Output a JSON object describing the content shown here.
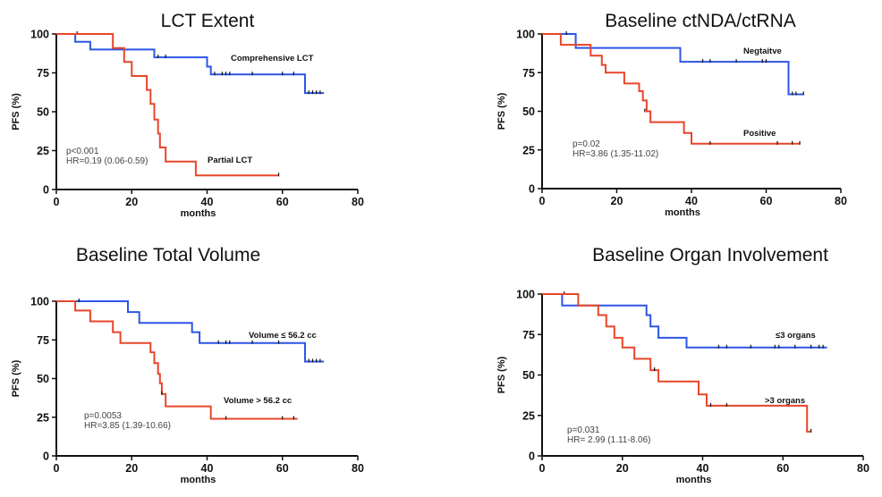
{
  "chart_data": [
    {
      "type": "line",
      "title": "LCT Extent",
      "xlabel": "months",
      "ylabel": "PFS (%)",
      "xlim": [
        0,
        80
      ],
      "ylim": [
        0,
        100
      ],
      "xticks": [
        "0",
        "20",
        "40",
        "60",
        "80"
      ],
      "yticks": [
        "0",
        "25",
        "50",
        "75",
        "100"
      ],
      "stat_lines": [
        "p<0.001",
        "HR=0.19 (0.06-0.59)"
      ],
      "series": [
        {
          "name": "Comprehensive LCT",
          "color": "#2c55e6",
          "steps": [
            [
              0,
              100
            ],
            [
              5,
              100
            ],
            [
              5,
              95
            ],
            [
              9,
              95
            ],
            [
              9,
              90
            ],
            [
              26,
              90
            ],
            [
              26,
              85
            ],
            [
              40,
              85
            ],
            [
              40,
              79
            ],
            [
              41,
              79
            ],
            [
              41,
              74
            ],
            [
              66,
              74
            ],
            [
              66,
              62
            ],
            [
              71,
              62
            ]
          ],
          "censor": [
            [
              5.5,
              100
            ],
            [
              27,
              85
            ],
            [
              29,
              85
            ],
            [
              42,
              74
            ],
            [
              44,
              74
            ],
            [
              45,
              74
            ],
            [
              46,
              74
            ],
            [
              52,
              74
            ],
            [
              60,
              74
            ],
            [
              63,
              74
            ],
            [
              67,
              62
            ],
            [
              68,
              62
            ],
            [
              69,
              62
            ],
            [
              70,
              62
            ]
          ]
        },
        {
          "name": "Partial LCT",
          "color": "#e8462a",
          "steps": [
            [
              0,
              100
            ],
            [
              15,
              100
            ],
            [
              15,
              91
            ],
            [
              18,
              91
            ],
            [
              18,
              82
            ],
            [
              20,
              82
            ],
            [
              20,
              73
            ],
            [
              24,
              73
            ],
            [
              24,
              64
            ],
            [
              25,
              64
            ],
            [
              25,
              55
            ],
            [
              26,
              55
            ],
            [
              26,
              45
            ],
            [
              27,
              45
            ],
            [
              27,
              36
            ],
            [
              27.5,
              36
            ],
            [
              27.5,
              27
            ],
            [
              29,
              27
            ],
            [
              29,
              18
            ],
            [
              37,
              18
            ],
            [
              37,
              9
            ],
            [
              59,
              9
            ]
          ],
          "censor": [
            [
              59,
              9
            ]
          ]
        }
      ]
    },
    {
      "type": "line",
      "title": "Baseline ctNDA/ctRNA",
      "xlabel": "months",
      "ylabel": "PFS (%)",
      "xlim": [
        0,
        80
      ],
      "ylim": [
        0,
        100
      ],
      "xticks": [
        "0",
        "20",
        "40",
        "60",
        "80"
      ],
      "yticks": [
        "0",
        "25",
        "50",
        "75",
        "100"
      ],
      "stat_lines": [
        "p=0.02",
        "HR=3.86 (1.35-11.02)"
      ],
      "series": [
        {
          "name": "Negtaitve",
          "color": "#2c55e6",
          "steps": [
            [
              0,
              100
            ],
            [
              9,
              100
            ],
            [
              9,
              91
            ],
            [
              37,
              91
            ],
            [
              37,
              82
            ],
            [
              66,
              82
            ],
            [
              66,
              61
            ],
            [
              70,
              61
            ]
          ],
          "censor": [
            [
              6.5,
              100
            ],
            [
              43,
              82
            ],
            [
              45,
              82
            ],
            [
              52,
              82
            ],
            [
              59,
              82
            ],
            [
              60,
              82
            ],
            [
              67,
              61
            ],
            [
              68,
              61
            ],
            [
              70,
              61
            ]
          ]
        },
        {
          "name": "Positive",
          "color": "#e8462a",
          "steps": [
            [
              0,
              100
            ],
            [
              5,
              100
            ],
            [
              5,
              93
            ],
            [
              13,
              93
            ],
            [
              13,
              86
            ],
            [
              16,
              86
            ],
            [
              16,
              80
            ],
            [
              17,
              80
            ],
            [
              17,
              75
            ],
            [
              22,
              75
            ],
            [
              22,
              68
            ],
            [
              26,
              68
            ],
            [
              26,
              63
            ],
            [
              27,
              63
            ],
            [
              27,
              57
            ],
            [
              28,
              57
            ],
            [
              28,
              50
            ],
            [
              29,
              50
            ],
            [
              29,
              43
            ],
            [
              38,
              43
            ],
            [
              38,
              36
            ],
            [
              40,
              36
            ],
            [
              40,
              29
            ],
            [
              69,
              29
            ]
          ],
          "censor": [
            [
              27.5,
              50
            ],
            [
              45,
              29
            ],
            [
              63,
              29
            ],
            [
              67,
              29
            ],
            [
              69,
              29
            ]
          ]
        }
      ]
    },
    {
      "type": "line",
      "title": "Baseline Total Volume",
      "xlabel": "months",
      "ylabel": "PFS (%)",
      "xlim": [
        0,
        80
      ],
      "ylim": [
        0,
        100
      ],
      "xticks": [
        "0",
        "20",
        "40",
        "60",
        "80"
      ],
      "yticks": [
        "0",
        "25",
        "50",
        "75",
        "100"
      ],
      "stat_lines": [
        "p=0.0053",
        "HR=3.85 (1.39-10.66)"
      ],
      "series": [
        {
          "name": "Volume ≤ 56.2 cc",
          "color": "#2c55e6",
          "steps": [
            [
              0,
              100
            ],
            [
              19,
              100
            ],
            [
              19,
              93
            ],
            [
              22,
              93
            ],
            [
              22,
              86
            ],
            [
              36,
              86
            ],
            [
              36,
              80
            ],
            [
              38,
              80
            ],
            [
              38,
              73
            ],
            [
              66,
              73
            ],
            [
              66,
              61
            ],
            [
              71,
              61
            ]
          ],
          "censor": [
            [
              6,
              100
            ],
            [
              43,
              73
            ],
            [
              45,
              73
            ],
            [
              46,
              73
            ],
            [
              52,
              73
            ],
            [
              59,
              73
            ],
            [
              67,
              61
            ],
            [
              68,
              61
            ],
            [
              69,
              61
            ],
            [
              70,
              61
            ]
          ]
        },
        {
          "name": "Volume > 56.2 cc",
          "color": "#e8462a",
          "steps": [
            [
              0,
              100
            ],
            [
              5,
              100
            ],
            [
              5,
              94
            ],
            [
              9,
              94
            ],
            [
              9,
              87
            ],
            [
              15,
              87
            ],
            [
              15,
              80
            ],
            [
              17,
              80
            ],
            [
              17,
              73
            ],
            [
              25,
              73
            ],
            [
              25,
              67
            ],
            [
              26,
              67
            ],
            [
              26,
              60
            ],
            [
              27,
              60
            ],
            [
              27,
              53
            ],
            [
              27.5,
              53
            ],
            [
              27.5,
              47
            ],
            [
              28,
              47
            ],
            [
              28,
              40
            ],
            [
              29,
              40
            ],
            [
              29,
              32
            ],
            [
              41,
              32
            ],
            [
              41,
              24
            ],
            [
              64,
              24
            ]
          ],
          "censor": [
            [
              28,
              40
            ],
            [
              45,
              24
            ],
            [
              60,
              24
            ],
            [
              63,
              24
            ]
          ]
        }
      ]
    },
    {
      "type": "line",
      "title": "Baseline Organ Involvement",
      "xlabel": "months",
      "ylabel": "PFS (%)",
      "xlim": [
        0,
        80
      ],
      "ylim": [
        0,
        100
      ],
      "xticks": [
        "0",
        "20",
        "40",
        "60",
        "80"
      ],
      "yticks": [
        "0",
        "25",
        "50",
        "75",
        "100"
      ],
      "stat_lines": [
        "p=0.031",
        "HR= 2.99 (1.11-8.06)"
      ],
      "series": [
        {
          "name": "≤3 organs",
          "color": "#2c55e6",
          "steps": [
            [
              0,
              100
            ],
            [
              5,
              100
            ],
            [
              5,
              93
            ],
            [
              26,
              93
            ],
            [
              26,
              87
            ],
            [
              27,
              87
            ],
            [
              27,
              80
            ],
            [
              29,
              80
            ],
            [
              29,
              73
            ],
            [
              36,
              73
            ],
            [
              36,
              67
            ],
            [
              71,
              67
            ]
          ],
          "censor": [
            [
              5.5,
              100
            ],
            [
              44,
              67
            ],
            [
              46,
              67
            ],
            [
              52,
              67
            ],
            [
              58,
              67
            ],
            [
              59,
              67
            ],
            [
              63,
              67
            ],
            [
              67,
              67
            ],
            [
              69,
              67
            ],
            [
              70,
              67
            ]
          ]
        },
        {
          "name": ">3 organs",
          "color": "#e8462a",
          "steps": [
            [
              0,
              100
            ],
            [
              9,
              100
            ],
            [
              9,
              93
            ],
            [
              14,
              93
            ],
            [
              14,
              87
            ],
            [
              16,
              87
            ],
            [
              16,
              80
            ],
            [
              18,
              80
            ],
            [
              18,
              73
            ],
            [
              20,
              73
            ],
            [
              20,
              67
            ],
            [
              23,
              67
            ],
            [
              23,
              60
            ],
            [
              27,
              60
            ],
            [
              27,
              53
            ],
            [
              29,
              53
            ],
            [
              29,
              46
            ],
            [
              39,
              46
            ],
            [
              39,
              38
            ],
            [
              41,
              38
            ],
            [
              41,
              31
            ],
            [
              66,
              31
            ],
            [
              66,
              15
            ],
            [
              67,
              15
            ]
          ],
          "censor": [
            [
              28,
              53
            ],
            [
              42,
              31
            ],
            [
              46,
              31
            ],
            [
              67,
              15
            ]
          ]
        }
      ]
    }
  ]
}
